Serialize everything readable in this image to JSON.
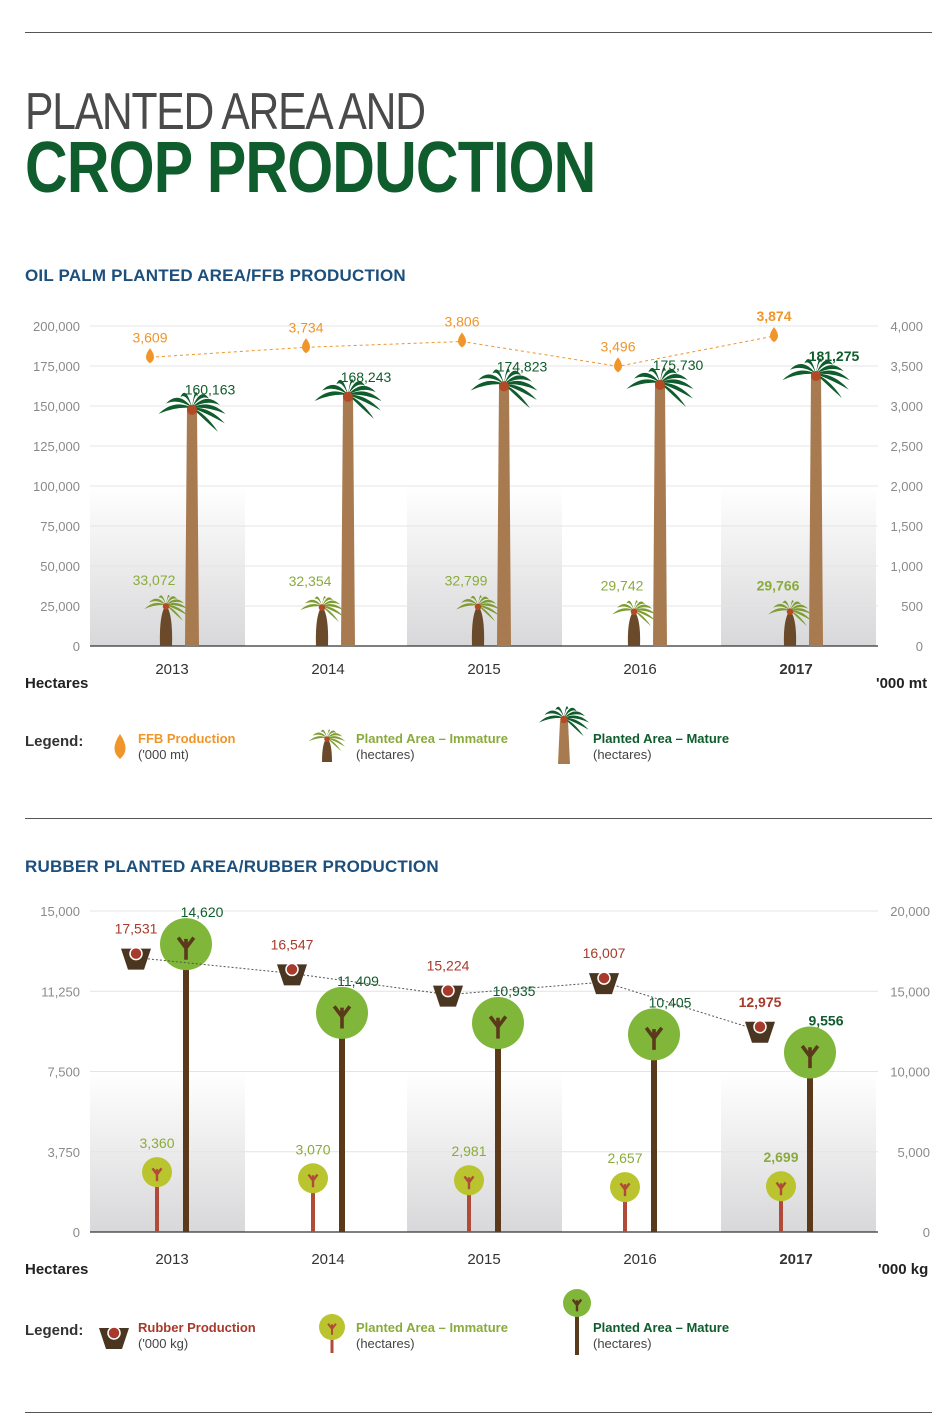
{
  "header": {
    "title_line1": "PLANTED AREA AND",
    "title_line2": "CROP PRODUCTION"
  },
  "colors": {
    "orange": "#f0952a",
    "dark_green": "#0f5c2c",
    "light_green": "#8aab3c",
    "rubber_red": "#a73a2b",
    "blue_title": "#1c4f7c",
    "trunk_palm": "#a87a4f",
    "trunk_rubber": "#5a3a1a",
    "axis_grey": "#8a8a8a"
  },
  "chart_data": [
    {
      "type": "bar",
      "title": "OIL PALM PLANTED AREA/FFB PRODUCTION",
      "categories": [
        "2013",
        "2014",
        "2015",
        "2016",
        "2017"
      ],
      "xlabel": "",
      "ylabel_left": "Hectares",
      "ylabel_right": "'000 mt",
      "ylim_left": [
        0,
        200000
      ],
      "ylim_right": [
        0,
        4000
      ],
      "yticks_left": [
        "0",
        "25,000",
        "50,000",
        "75,000",
        "100,000",
        "125,000",
        "150,000",
        "175,000",
        "200,000"
      ],
      "yticks_right": [
        "0",
        "500",
        "1,000",
        "1,500",
        "2,000",
        "2,500",
        "3,000",
        "3,500",
        "4,000"
      ],
      "series": [
        {
          "name": "Planted Area – Immature",
          "unit": "(hectares)",
          "axis": "left",
          "values": [
            33072,
            32354,
            32799,
            29742,
            29766
          ],
          "labels": [
            "33,072",
            "32,354",
            "32,799",
            "29,742",
            "29,766"
          ]
        },
        {
          "name": "Planted Area – Mature",
          "unit": "(hectares)",
          "axis": "left",
          "values": [
            160163,
            168243,
            174823,
            175730,
            181275
          ],
          "labels": [
            "160,163",
            "168,243",
            "174,823",
            "175,730",
            "181,275"
          ]
        },
        {
          "name": "FFB Production",
          "unit": "('000 mt)",
          "axis": "right",
          "type": "line",
          "values": [
            3609,
            3734,
            3806,
            3496,
            3874
          ],
          "labels": [
            "3,609",
            "3,734",
            "3,806",
            "3,496",
            "3,874"
          ]
        }
      ],
      "legend_label": "Legend:",
      "grid": true,
      "legend_position": "bottom"
    },
    {
      "type": "bar",
      "title": "RUBBER PLANTED AREA/RUBBER PRODUCTION",
      "categories": [
        "2013",
        "2014",
        "2015",
        "2016",
        "2017"
      ],
      "xlabel": "",
      "ylabel_left": "Hectares",
      "ylabel_right": "'000 kg",
      "ylim_left": [
        0,
        15000
      ],
      "ylim_right": [
        0,
        20000
      ],
      "yticks_left": [
        "0",
        "3,750",
        "7,500",
        "11,250",
        "15,000"
      ],
      "yticks_right": [
        "0",
        "5,000",
        "10,000",
        "15,000",
        "20,000"
      ],
      "series": [
        {
          "name": "Planted Area – Immature",
          "unit": "(hectares)",
          "axis": "left",
          "values": [
            3360,
            3070,
            2981,
            2657,
            2699
          ],
          "labels": [
            "3,360",
            "3,070",
            "2,981",
            "2,657",
            "2,699"
          ]
        },
        {
          "name": "Planted Area – Mature",
          "unit": "(hectares)",
          "axis": "left",
          "values": [
            14620,
            11409,
            10935,
            10405,
            9556
          ],
          "labels": [
            "14,620",
            "11,409",
            "10,935",
            "10,405",
            "9,556"
          ]
        },
        {
          "name": "Rubber Production",
          "unit": "('000 kg)",
          "axis": "right",
          "type": "line",
          "values": [
            17531,
            16547,
            15224,
            16007,
            12975
          ],
          "labels": [
            "17,531",
            "16,547",
            "15,224",
            "16,007",
            "12,975"
          ]
        }
      ],
      "legend_label": "Legend:",
      "grid": true,
      "legend_position": "bottom"
    }
  ]
}
